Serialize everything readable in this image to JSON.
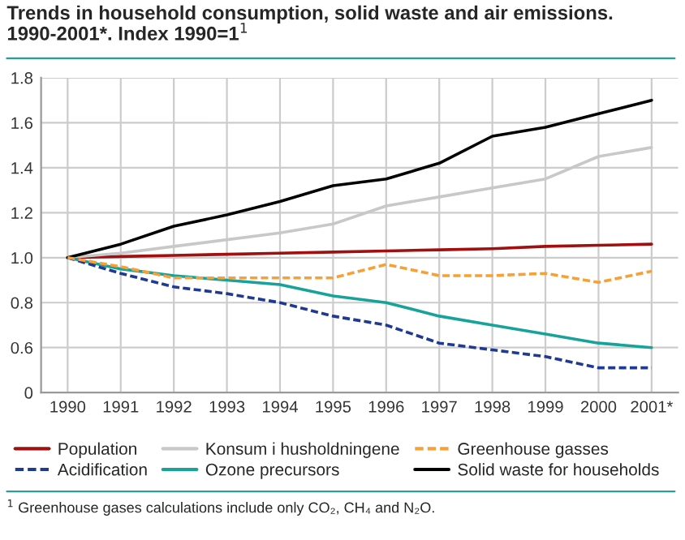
{
  "chart_data": {
    "type": "line",
    "title": "Trends in household consumption, solid waste and air emissions. 1990-2001*. Index 1990=1$^{1}$",
    "categories": [
      "1990",
      "1991",
      "1992",
      "1993",
      "1994",
      "1995",
      "1996",
      "1997",
      "1998",
      "1999",
      "2000",
      "2001*"
    ],
    "series": [
      {
        "name": "Population",
        "color": "#a01010",
        "line_style": "solid",
        "values": [
          1.0,
          1.005,
          1.01,
          1.015,
          1.02,
          1.025,
          1.03,
          1.035,
          1.04,
          1.05,
          1.055,
          1.06
        ]
      },
      {
        "name": "Konsum i husholdningene",
        "color": "#c8c8c8",
        "line_style": "solid",
        "values": [
          1.0,
          1.02,
          1.05,
          1.08,
          1.11,
          1.15,
          1.23,
          1.27,
          1.31,
          1.35,
          1.45,
          1.49
        ]
      },
      {
        "name": "Greenhouse gasses",
        "color": "#f7a035",
        "line_style": "dashed",
        "values": [
          1.0,
          0.96,
          0.91,
          0.91,
          0.91,
          0.91,
          0.97,
          0.92,
          0.92,
          0.93,
          0.89,
          0.94
        ]
      },
      {
        "name": "Acidification",
        "color": "#1f3a93",
        "line_style": "dashed",
        "values": [
          1.0,
          0.93,
          0.87,
          0.84,
          0.8,
          0.74,
          0.7,
          0.62,
          0.59,
          0.56,
          0.51,
          0.51
        ]
      },
      {
        "name": "Ozone precursors",
        "color": "#17a39a",
        "line_style": "solid",
        "values": [
          1.0,
          0.95,
          0.92,
          0.9,
          0.88,
          0.83,
          0.8,
          0.74,
          0.7,
          0.66,
          0.62,
          0.6
        ]
      },
      {
        "name": "Solid waste for households",
        "color": "#000000",
        "line_style": "solid",
        "values": [
          1.0,
          1.06,
          1.14,
          1.19,
          1.25,
          1.32,
          1.35,
          1.42,
          1.54,
          1.58,
          1.64,
          1.7
        ]
      }
    ],
    "ylim": [
      0.4,
      1.8
    ],
    "yticks": [
      {
        "value": 0.4,
        "label": "0"
      },
      {
        "value": 0.6,
        "label": "0.6"
      },
      {
        "value": 0.8,
        "label": "0.8"
      },
      {
        "value": 1.0,
        "label": "1.0"
      },
      {
        "value": 1.2,
        "label": "1.2"
      },
      {
        "value": 1.4,
        "label": "1.4"
      },
      {
        "value": 1.6,
        "label": "1.6"
      },
      {
        "value": 1.8,
        "label": "1.8"
      }
    ],
    "grid": true,
    "legend": "bottom",
    "marker": "none",
    "annotations": [
      "$^{1}$ Greenhouse gases calculations include only CO₂, CH₄ and N₂O."
    ]
  }
}
